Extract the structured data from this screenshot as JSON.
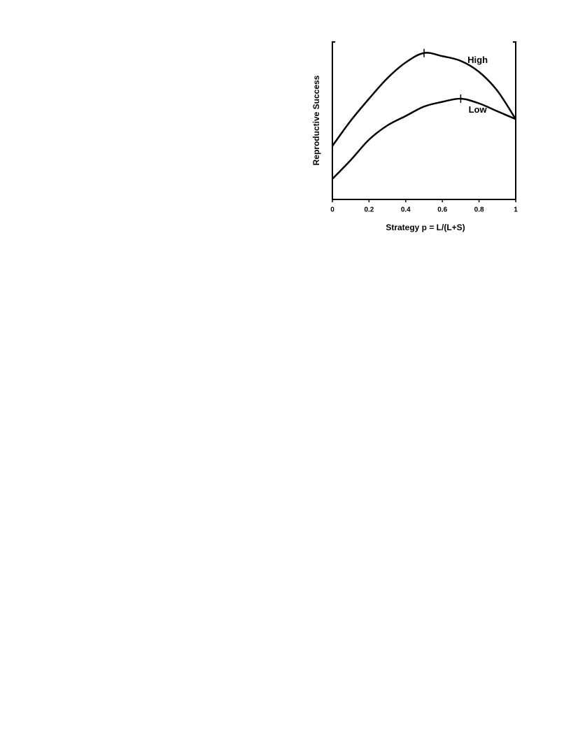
{
  "chart_data": {
    "type": "line",
    "x": [
      0,
      0.1,
      0.2,
      0.3,
      0.4,
      0.5,
      0.6,
      0.7,
      0.8,
      0.9,
      1
    ],
    "series": [
      {
        "name": "High",
        "color": "#000000",
        "values": [
          0.34,
          0.5,
          0.64,
          0.77,
          0.87,
          0.93,
          0.91,
          0.88,
          0.81,
          0.69,
          0.51
        ],
        "peak": 0.5
      },
      {
        "name": "Low",
        "color": "#000000",
        "values": [
          0.13,
          0.25,
          0.38,
          0.47,
          0.53,
          0.59,
          0.62,
          0.64,
          0.61,
          0.56,
          0.51
        ],
        "peak": 0.7
      }
    ],
    "xlabel": "Strategy p =  L/(L+S)",
    "ylabel": "Reproductive Success",
    "xlim": [
      0,
      1
    ],
    "xticks": [
      0,
      0.2,
      0.4,
      0.6,
      0.8,
      1
    ],
    "ylim": [
      0,
      1
    ]
  }
}
